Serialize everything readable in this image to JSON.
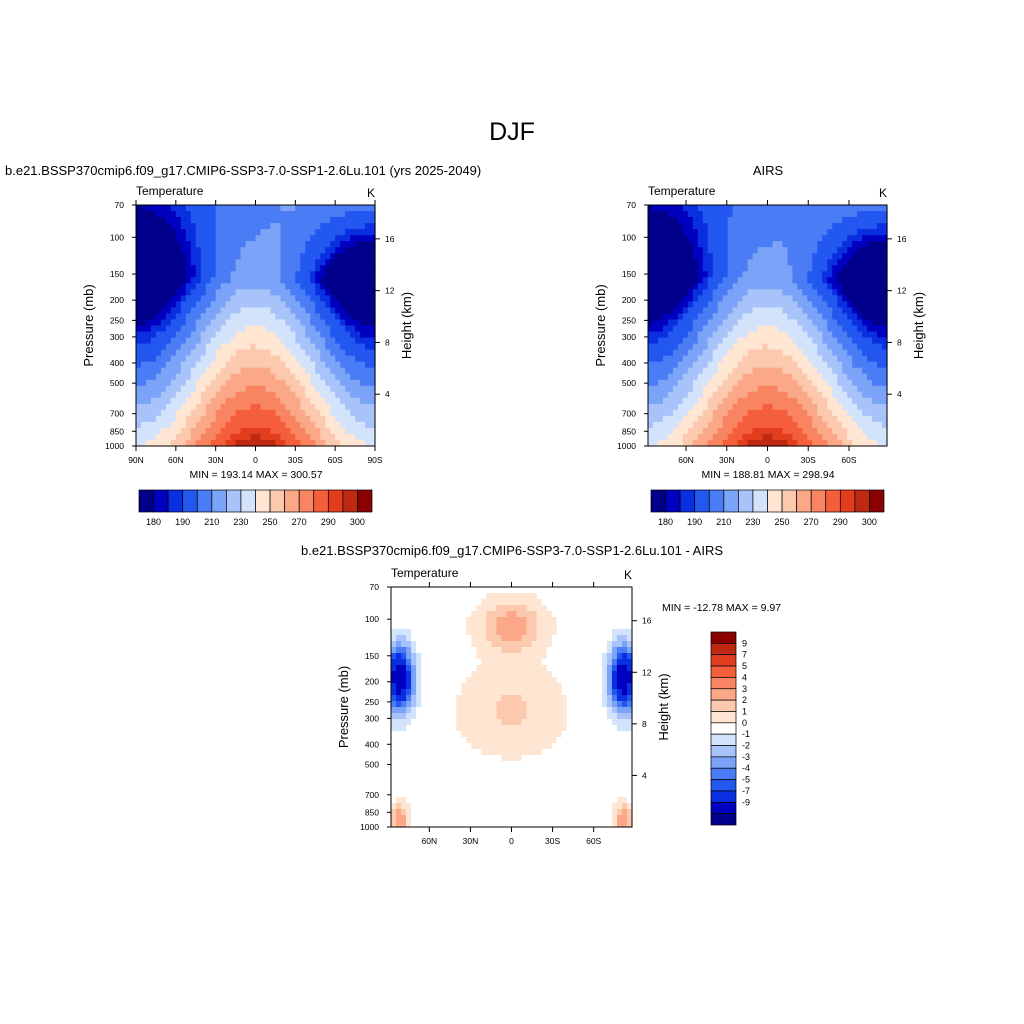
{
  "figure": {
    "title": "DJF"
  },
  "colors": {
    "temperature_levels": [
      "#00008b",
      "#0000c0",
      "#0a2fe0",
      "#2257f0",
      "#4a7cf5",
      "#7ba3f7",
      "#a8c3fa",
      "#d3e3fb",
      "#ffe6d3",
      "#fcc9ae",
      "#fba888",
      "#f98462",
      "#f45e3b",
      "#e33d1f",
      "#bf2912",
      "#8b0000"
    ],
    "difference_levels": [
      "#00008b",
      "#0000c0",
      "#0a2fe0",
      "#2257f0",
      "#4a7cf5",
      "#7ba3f7",
      "#a8c3fa",
      "#d3e3fb",
      "#ffffff",
      "#ffe6d3",
      "#fcc9ae",
      "#fba888",
      "#f98462",
      "#f45e3b",
      "#e33d1f",
      "#bf2912",
      "#8b0000"
    ]
  },
  "chart_data": [
    {
      "type": "contour",
      "title": "b.e21.BSSP370cmip6.f09_g17.CMIP6-SSP3-7.0-SSP1-2.6Lu.101 (yrs 2025-2049)",
      "variable": "Temperature",
      "units": "K",
      "ylabel": "Pressure (mb)",
      "ylabel_right": "Height (km)",
      "x_ticks": [
        "90N",
        "60N",
        "30N",
        "0",
        "30S",
        "60S",
        "90S"
      ],
      "y_ticks": [
        "70",
        "100",
        "150",
        "200",
        "250",
        "300",
        "400",
        "500",
        "700",
        "850",
        "1000"
      ],
      "y_ticks_right": [
        "4",
        "8",
        "12",
        "16"
      ],
      "stats": "MIN = 193.14  MAX = 300.57",
      "min": 193.14,
      "max": 300.57,
      "y_log_scale": true,
      "colorbar": {
        "labels": [
          "180",
          "190",
          "210",
          "230",
          "250",
          "270",
          "290",
          "300"
        ]
      }
    },
    {
      "type": "contour",
      "title": "AIRS",
      "variable": "Temperature",
      "units": "K",
      "ylabel": "Pressure (mb)",
      "ylabel_right": "Height (km)",
      "x_ticks": [
        "60N",
        "30N",
        "0",
        "30S",
        "60S"
      ],
      "y_ticks": [
        "70",
        "100",
        "150",
        "200",
        "250",
        "300",
        "400",
        "500",
        "700",
        "850",
        "1000"
      ],
      "y_ticks_right": [
        "4",
        "8",
        "12",
        "16"
      ],
      "stats": "MIN = 188.81  MAX = 298.94",
      "min": 188.81,
      "max": 298.94,
      "y_log_scale": true,
      "colorbar": {
        "labels": [
          "180",
          "190",
          "210",
          "230",
          "250",
          "270",
          "290",
          "300"
        ]
      }
    },
    {
      "type": "contour",
      "title": "b.e21.BSSP370cmip6.f09_g17.CMIP6-SSP3-7.0-SSP1-2.6Lu.101 - AIRS",
      "variable": "Temperature",
      "units": "K",
      "ylabel": "Pressure (mb)",
      "ylabel_right": "Height (km)",
      "x_ticks": [
        "60N",
        "30N",
        "0",
        "30S",
        "60S"
      ],
      "y_ticks": [
        "70",
        "100",
        "150",
        "200",
        "250",
        "300",
        "400",
        "500",
        "700",
        "850",
        "1000"
      ],
      "y_ticks_right": [
        "4",
        "8",
        "12",
        "16"
      ],
      "stats": "MIN = -12.78  MAX =   9.97",
      "min": -12.78,
      "max": 9.97,
      "y_log_scale": true,
      "colorbar": {
        "orientation": "vertical",
        "labels": [
          "9",
          "7",
          "5",
          "4",
          "3",
          "2",
          "1",
          "0",
          "-1",
          "-2",
          "-3",
          "-4",
          "-5",
          "-7",
          "-9"
        ]
      }
    }
  ]
}
